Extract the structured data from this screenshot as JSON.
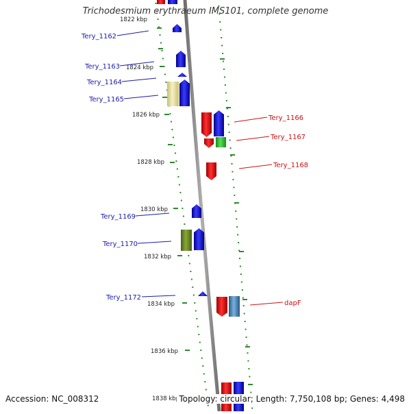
{
  "title": "Trichodesmium erythraeum IMS101, complete genome",
  "footer": {
    "accession": "Accession: NC_008312",
    "summary": "Topology: circular; Length: 7,750,108 bp; Genes: 4,498"
  },
  "axis_unit": "kbp",
  "ticks": [
    {
      "label": "1822 kbp",
      "pos": 1822
    },
    {
      "label": "1824 kbp",
      "pos": 1824
    },
    {
      "label": "1826 kbp",
      "pos": 1826
    },
    {
      "label": "1828 kbp",
      "pos": 1828
    },
    {
      "label": "1830 kbp",
      "pos": 1830
    },
    {
      "label": "1832 kbp",
      "pos": 1832
    },
    {
      "label": "1834 kbp",
      "pos": 1834
    },
    {
      "label": "1836 kbp",
      "pos": 1836
    },
    {
      "label": "1838 kbp",
      "pos": 1838
    }
  ],
  "genes": [
    {
      "label": "Tery_1162",
      "label_color": "blue"
    },
    {
      "label": "Tery_1163",
      "label_color": "blue"
    },
    {
      "label": "Tery_1164",
      "label_color": "blue"
    },
    {
      "label": "Tery_1165",
      "label_color": "blue"
    },
    {
      "label": "Tery_1166",
      "label_color": "red"
    },
    {
      "label": "Tery_1167",
      "label_color": "red"
    },
    {
      "label": "Tery_1168",
      "label_color": "red"
    },
    {
      "label": "Tery_1169",
      "label_color": "blue"
    },
    {
      "label": "Tery_1170",
      "label_color": "blue"
    },
    {
      "label": "Tery_1172",
      "label_color": "blue"
    },
    {
      "label": "dapF",
      "label_color": "red"
    }
  ],
  "colors": {
    "backbone": "#8c8c8c",
    "tick": "#2a8a2a",
    "blue_label": "#1a1aaa",
    "red_label": "#cc1111",
    "feature_blue": "#1a1aff",
    "feature_red": "#ee1111",
    "feature_green": "#33cc33",
    "feature_olive": "#6b8e23",
    "feature_steel": "#4682b4",
    "feature_khaki": "#e8e0a0"
  }
}
